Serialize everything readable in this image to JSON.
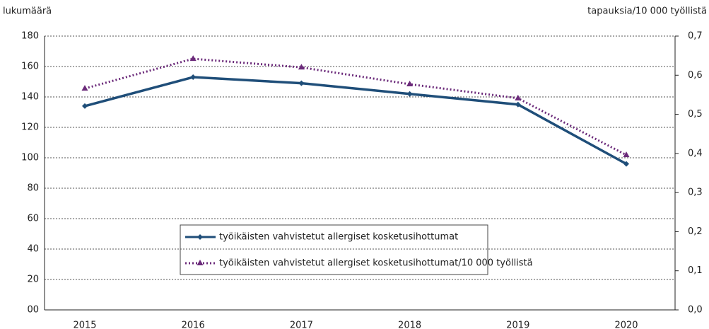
{
  "chart_data": {
    "type": "line",
    "y_label": "lukumäärä",
    "y2_label": "tapauksia/10 000 työllistä",
    "categories": [
      "2015",
      "2016",
      "2017",
      "2018",
      "2019",
      "2020"
    ],
    "series": [
      {
        "name": "työikäisten vahvistetut allergiset kosketusihottumat",
        "color": "#1f4e79",
        "values": [
          134,
          153,
          149,
          142,
          135,
          96
        ]
      },
      {
        "name": "työikäisten vahvistetut allergiset kosketusihottumat/10 000 työllistä",
        "color": "#6b2a7a",
        "axis": "y2",
        "values": [
          0.566,
          0.642,
          0.62,
          0.577,
          0.541,
          0.396
        ]
      }
    ],
    "ylim": [
      0,
      180
    ],
    "yticks": [
      {
        "value": 0,
        "label": "00"
      },
      20,
      40,
      60,
      80,
      100,
      120,
      140,
      160,
      180
    ],
    "y2lim": [
      0,
      0.7
    ],
    "y2ticks": [
      {
        "value": 0,
        "label": "0,0"
      },
      {
        "value": 0.1,
        "label": "0,1"
      },
      {
        "value": 0.2,
        "label": "0,2"
      },
      {
        "value": 0.3,
        "label": "0,3"
      },
      {
        "value": 0.4,
        "label": "0,4"
      },
      {
        "value": 0.5,
        "label": "0,5"
      },
      {
        "value": 0.6,
        "label": "0,6"
      },
      {
        "value": 0.7,
        "label": "0,7"
      }
    ],
    "grid": true
  }
}
